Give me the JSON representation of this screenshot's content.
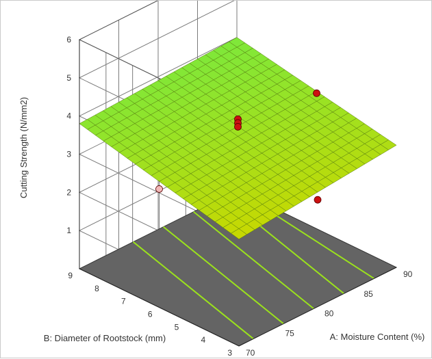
{
  "chart_data": {
    "type": "surface3d",
    "z_axis": {
      "label": "Cutting Strength (N/mm2)",
      "ticks": [
        "1",
        "2",
        "3",
        "4",
        "5",
        "6"
      ],
      "range": [
        1,
        6
      ]
    },
    "x_axis": {
      "label": "A: Moisture Content (%)",
      "ticks": [
        "70",
        "75",
        "80",
        "85",
        "90"
      ],
      "range": [
        70,
        90
      ]
    },
    "y_axis": {
      "label": "B: Diameter of Rootstock (mm)",
      "ticks": [
        "3",
        "4",
        "5",
        "6",
        "7",
        "8",
        "9"
      ],
      "range": [
        3,
        9
      ]
    },
    "surface_corners": [
      {
        "moisture": 70,
        "diameter": 3,
        "strength": 2.8
      },
      {
        "moisture": 90,
        "diameter": 3,
        "strength": 3.2
      },
      {
        "moisture": 90,
        "diameter": 9,
        "strength": 4.0
      },
      {
        "moisture": 70,
        "diameter": 9,
        "strength": 3.8
      }
    ],
    "design_points": [
      {
        "moisture": 80,
        "diameter": 6,
        "strength": 3.9,
        "color": "#cc1111"
      },
      {
        "moisture": 80,
        "diameter": 6,
        "strength": 3.8,
        "color": "#cc1111"
      },
      {
        "moisture": 80,
        "diameter": 6,
        "strength": 3.7,
        "color": "#cc1111"
      },
      {
        "moisture": 80,
        "diameter": 3,
        "strength": 2.8,
        "color": "#cc1111"
      },
      {
        "moisture": 90,
        "diameter": 6,
        "strength": 3.55,
        "color": "#cc1111"
      },
      {
        "moisture": 70,
        "diameter": 6,
        "strength": 3.1,
        "color": "#f2b9b9"
      }
    ],
    "contour_lines": 5,
    "colors": {
      "surface_low": "#c8d800",
      "surface_high": "#7ee83a",
      "mesh": "#557a10",
      "floor": "#646464",
      "contour": "#9be21c",
      "grid": "#7a7a7a"
    }
  }
}
